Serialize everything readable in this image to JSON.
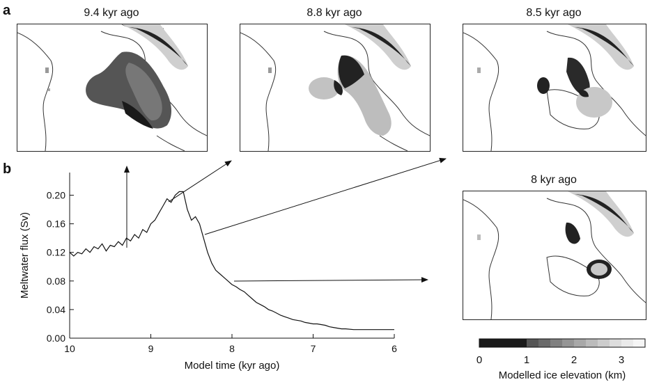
{
  "panels": {
    "a_label": "a",
    "b_label": "b"
  },
  "maps": [
    {
      "title": "9.4 kyr ago"
    },
    {
      "title": "8.8 kyr ago"
    },
    {
      "title": "8.5 kyr ago"
    },
    {
      "title": "8 kyr ago"
    }
  ],
  "chart_data": {
    "type": "line",
    "title": "",
    "xlabel": "Model time (kyr ago)",
    "ylabel": "Meltwater flux (Sv)",
    "xlim": [
      10,
      6
    ],
    "ylim": [
      0,
      0.22
    ],
    "x_ticks": [
      10,
      9,
      8,
      7,
      6
    ],
    "x_tick_labels": [
      "10",
      "9",
      "8",
      "7",
      "6"
    ],
    "y_ticks": [
      0.0,
      0.04,
      0.08,
      0.12,
      0.16,
      0.2
    ],
    "y_tick_labels": [
      "0.00",
      "0.04",
      "0.08",
      "0.12",
      "0.16",
      "0.20"
    ],
    "grid": false,
    "series": [
      {
        "x": [
          10.0,
          9.95,
          9.9,
          9.85,
          9.8,
          9.75,
          9.7,
          9.65,
          9.6,
          9.55,
          9.5,
          9.45,
          9.4,
          9.35,
          9.3,
          9.25,
          9.2,
          9.15,
          9.1,
          9.05,
          9.0,
          8.95,
          8.9,
          8.85,
          8.8,
          8.75,
          8.7,
          8.65,
          8.6,
          8.55,
          8.5,
          8.45,
          8.4,
          8.35,
          8.3,
          8.25,
          8.2,
          8.15,
          8.1,
          8.05,
          8.0,
          7.95,
          7.9,
          7.85,
          7.8,
          7.75,
          7.7,
          7.65,
          7.6,
          7.55,
          7.5,
          7.45,
          7.4,
          7.35,
          7.3,
          7.25,
          7.2,
          7.15,
          7.1,
          7.05,
          7.0,
          6.95,
          6.9,
          6.85,
          6.8,
          6.75,
          6.7,
          6.65,
          6.6,
          6.5,
          6.4,
          6.3,
          6.2,
          6.1,
          6.0
        ],
        "y": [
          0.12,
          0.115,
          0.12,
          0.118,
          0.125,
          0.12,
          0.128,
          0.125,
          0.132,
          0.122,
          0.13,
          0.128,
          0.135,
          0.13,
          0.14,
          0.136,
          0.145,
          0.14,
          0.152,
          0.148,
          0.16,
          0.165,
          0.175,
          0.185,
          0.195,
          0.19,
          0.2,
          0.205,
          0.205,
          0.18,
          0.165,
          0.17,
          0.16,
          0.14,
          0.12,
          0.105,
          0.095,
          0.09,
          0.085,
          0.08,
          0.075,
          0.072,
          0.068,
          0.065,
          0.06,
          0.055,
          0.05,
          0.047,
          0.044,
          0.04,
          0.038,
          0.035,
          0.032,
          0.03,
          0.028,
          0.026,
          0.025,
          0.024,
          0.022,
          0.021,
          0.02,
          0.02,
          0.019,
          0.018,
          0.016,
          0.015,
          0.014,
          0.013,
          0.013,
          0.012,
          0.012,
          0.012,
          0.012,
          0.012,
          0.012
        ]
      }
    ]
  },
  "colorbar": {
    "label": "Modelled ice elevation (km)",
    "ticks": [
      "0",
      "1",
      "2",
      "3"
    ],
    "tick_values": [
      0,
      1,
      2,
      3
    ],
    "range": [
      0,
      3.5
    ],
    "colors": [
      "#1a1a1a",
      "#1a1a1a",
      "#1a1a1a",
      "#1a1a1a",
      "#555555",
      "#6a6a6a",
      "#808080",
      "#959595",
      "#a8a8a8",
      "#bbbbbb",
      "#cccccc",
      "#dddddd",
      "#eaeaea",
      "#f5f5f5"
    ]
  }
}
